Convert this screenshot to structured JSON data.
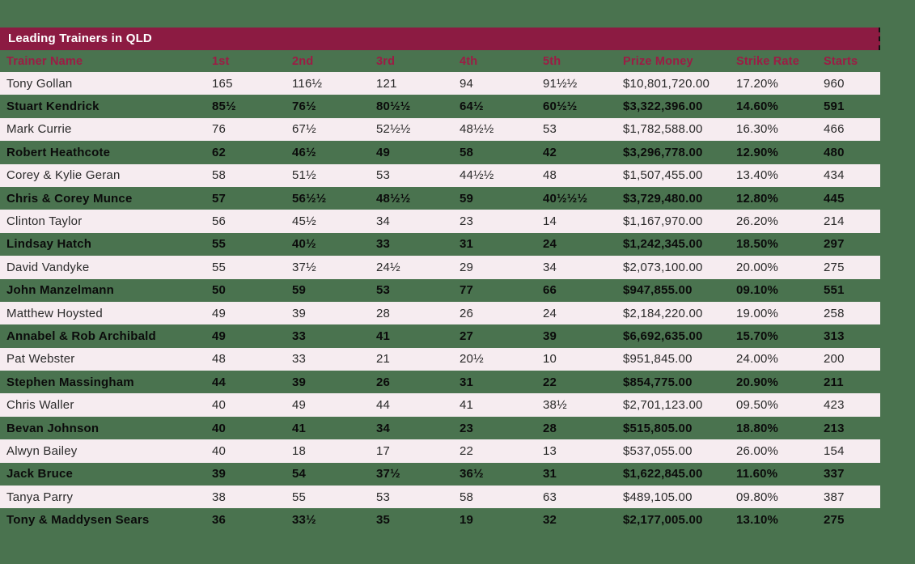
{
  "colors": {
    "background_green": "#4A734F",
    "maroon_accent": "#8C1B42",
    "header_text_maroon": "#9C1C45",
    "stripe_light": "#F6ECF0",
    "title_text": "#FFFFFF",
    "dark_row_text": "#0B0B0B",
    "light_row_text": "#2A2A2A"
  },
  "header_bar": {
    "title": "Leading Trainers in QLD"
  },
  "chart_data": {
    "type": "table",
    "title": "Leading Trainers in QLD",
    "columns": [
      "Trainer Name",
      "1st",
      "2nd",
      "3rd",
      "4th",
      "5th",
      "Prize Money",
      "Strike Rate",
      "Starts"
    ],
    "rows": [
      [
        "Tony Gollan",
        "165",
        "116½",
        "121",
        "94",
        "91½½",
        "$10,801,720.00",
        "17.20%",
        "960"
      ],
      [
        "Stuart Kendrick",
        "85½",
        "76½",
        "80½½",
        "64½",
        "60½½",
        "$3,322,396.00",
        "14.60%",
        "591"
      ],
      [
        "Mark Currie",
        "76",
        "67½",
        "52½½",
        "48½½",
        "53",
        "$1,782,588.00",
        "16.30%",
        "466"
      ],
      [
        "Robert Heathcote",
        "62",
        "46½",
        "49",
        "58",
        "42",
        "$3,296,778.00",
        "12.90%",
        "480"
      ],
      [
        "Corey & Kylie Geran",
        "58",
        "51½",
        "53",
        "44½½",
        "48",
        "$1,507,455.00",
        "13.40%",
        "434"
      ],
      [
        "Chris & Corey Munce",
        "57",
        "56½½",
        "48½½",
        "59",
        "40½½½",
        "$3,729,480.00",
        "12.80%",
        "445"
      ],
      [
        "Clinton Taylor",
        "56",
        "45½",
        "34",
        "23",
        "14",
        "$1,167,970.00",
        "26.20%",
        "214"
      ],
      [
        "Lindsay Hatch",
        "55",
        "40½",
        "33",
        "31",
        "24",
        "$1,242,345.00",
        "18.50%",
        "297"
      ],
      [
        "David Vandyke",
        "55",
        "37½",
        "24½",
        "29",
        "34",
        "$2,073,100.00",
        "20.00%",
        "275"
      ],
      [
        "John Manzelmann",
        "50",
        "59",
        "53",
        "77",
        "66",
        "$947,855.00",
        "09.10%",
        "551"
      ],
      [
        "Matthew Hoysted",
        "49",
        "39",
        "28",
        "26",
        "24",
        "$2,184,220.00",
        "19.00%",
        "258"
      ],
      [
        "Annabel & Rob Archibald",
        "49",
        "33",
        "41",
        "27",
        "39",
        "$6,692,635.00",
        "15.70%",
        "313"
      ],
      [
        "Pat Webster",
        "48",
        "33",
        "21",
        "20½",
        "10",
        "$951,845.00",
        "24.00%",
        "200"
      ],
      [
        "Stephen Massingham",
        "44",
        "39",
        "26",
        "31",
        "22",
        "$854,775.00",
        "20.90%",
        "211"
      ],
      [
        "Chris Waller",
        "40",
        "49",
        "44",
        "41",
        "38½",
        "$2,701,123.00",
        "09.50%",
        "423"
      ],
      [
        "Bevan Johnson",
        "40",
        "41",
        "34",
        "23",
        "28",
        "$515,805.00",
        "18.80%",
        "213"
      ],
      [
        "Alwyn Bailey",
        "40",
        "18",
        "17",
        "22",
        "13",
        "$537,055.00",
        "26.00%",
        "154"
      ],
      [
        "Jack Bruce",
        "39",
        "54",
        "37½",
        "36½",
        "31",
        "$1,622,845.00",
        "11.60%",
        "337"
      ],
      [
        "Tanya Parry",
        "38",
        "55",
        "53",
        "58",
        "63",
        "$489,105.00",
        "09.80%",
        "387"
      ],
      [
        "Tony & Maddysen Sears",
        "36",
        "33½",
        "35",
        "19",
        "32",
        "$2,177,005.00",
        "13.10%",
        "275"
      ]
    ],
    "layout": {
      "striped": true,
      "stripe_pattern": "odd rows light pink, even rows transparent green",
      "header_position": "top",
      "grid": false
    }
  }
}
